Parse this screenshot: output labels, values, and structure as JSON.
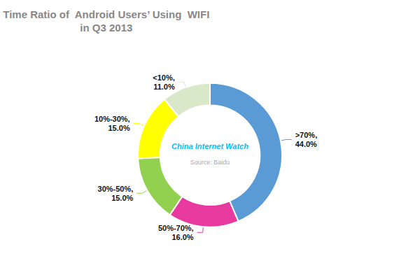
{
  "chart_data": {
    "type": "pie",
    "title": "Time Ratio of  Android Users’ Using  WIFI\nin Q3 2013",
    "categories": [
      ">70%,\n44.0%",
      "50%-70%,\n16.0%",
      "30%-50%,\n15.0%",
      "10%-30%,\n15.0%",
      "<10%,\n11.0%"
    ],
    "values": [
      44.0,
      16.0,
      15.0,
      15.0,
      11.0
    ],
    "colors": [
      "#5b9bd5",
      "#e8399e",
      "#92d050",
      "#ffff00",
      "#d9e8c8"
    ],
    "annotations": [
      {
        "text": "China Internet Watch",
        "color": "#00BFFF"
      },
      {
        "text": "Source: Baidu",
        "color": "#aaaaaa"
      }
    ]
  }
}
